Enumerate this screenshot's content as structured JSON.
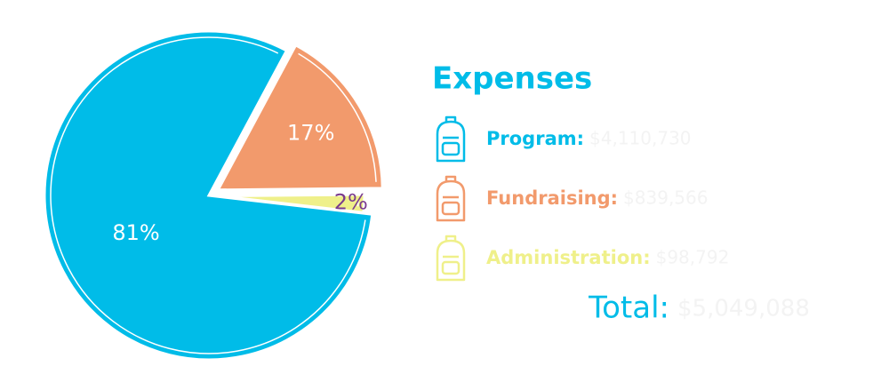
{
  "chart_data": {
    "type": "pie",
    "title": "Expenses",
    "categories": [
      "Program:",
      "Fundraising:",
      "Administration:"
    ],
    "values": [
      81,
      17,
      2
    ],
    "value_labels": [
      "81%",
      "17%",
      "2%"
    ],
    "colors": [
      "#00bce8",
      "#f29a6c",
      "#eff08a"
    ],
    "label_colors": [
      "#ffffff",
      "#ffffff",
      "#7a3b8e"
    ],
    "amounts": [
      {
        "value": 4110730,
        "label": "$4,110,730"
      },
      {
        "value": 839566,
        "label": "$839,566"
      },
      {
        "value": 98792,
        "label": "$98,792"
      }
    ],
    "total_label": "Total:",
    "total": {
      "value": 5049088,
      "label": "$5,049,088"
    }
  }
}
